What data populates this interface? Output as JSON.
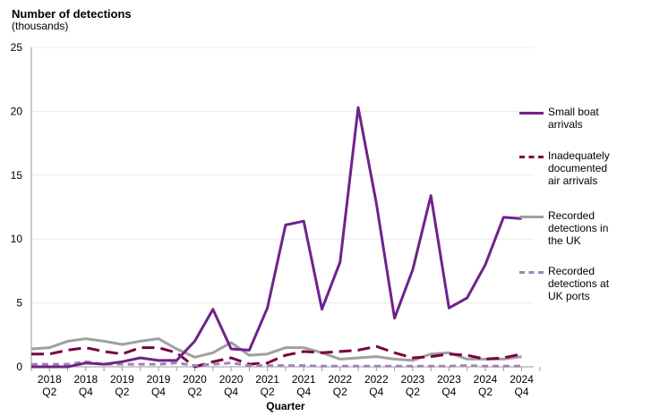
{
  "chart_data": {
    "type": "line",
    "title": "Number of detections",
    "subtitle": "(thousands)",
    "xlabel": "Quarter",
    "ylabel": "",
    "ylim": [
      0,
      25
    ],
    "yticks": [
      0,
      5,
      10,
      15,
      20,
      25
    ],
    "grid": true,
    "legend_position": "right",
    "x": [
      "2018 Q1",
      "2018 Q2",
      "2018 Q3",
      "2018 Q4",
      "2019 Q1",
      "2019 Q2",
      "2019 Q3",
      "2019 Q4",
      "2020 Q1",
      "2020 Q2",
      "2020 Q3",
      "2020 Q4",
      "2021 Q1",
      "2021 Q2",
      "2021 Q3",
      "2021 Q4",
      "2022 Q1",
      "2022 Q2",
      "2022 Q3",
      "2022 Q4",
      "2023 Q1",
      "2023 Q2",
      "2023 Q3",
      "2023 Q4",
      "2024 Q1",
      "2024 Q2",
      "2024 Q3",
      "2024 Q4"
    ],
    "xtick_labels": [
      [
        "2018",
        "Q2"
      ],
      [
        "2018",
        "Q4"
      ],
      [
        "2019",
        "Q2"
      ],
      [
        "2019",
        "Q4"
      ],
      [
        "2020",
        "Q2"
      ],
      [
        "2020",
        "Q4"
      ],
      [
        "2021",
        "Q2"
      ],
      [
        "2021",
        "Q4"
      ],
      [
        "2022",
        "Q2"
      ],
      [
        "2022",
        "Q4"
      ],
      [
        "2023",
        "Q2"
      ],
      [
        "2023",
        "Q4"
      ],
      [
        "2024",
        "Q2"
      ],
      [
        "2024",
        "Q4"
      ]
    ],
    "series": [
      {
        "name": "Small boat arrivals",
        "legend_lines": [
          "Small boat",
          "arrivals"
        ],
        "color": "#70228a",
        "dash": "solid",
        "values": [
          0.0,
          0.0,
          0.0,
          0.3,
          0.2,
          0.4,
          0.7,
          0.5,
          0.5,
          2.0,
          4.5,
          1.4,
          1.3,
          4.6,
          11.1,
          11.4,
          4.5,
          8.2,
          20.3,
          12.8,
          3.8,
          7.6,
          13.4,
          4.6,
          5.4,
          8.0,
          11.7,
          11.6
        ]
      },
      {
        "name": "Inadequately documented air arrivals",
        "legend_lines": [
          "Inadequately",
          "documented",
          "air arrivals"
        ],
        "color": "#7b0041",
        "dash": "long",
        "values": [
          1.0,
          1.0,
          1.3,
          1.5,
          1.2,
          1.0,
          1.5,
          1.5,
          1.1,
          0.0,
          0.4,
          0.7,
          0.2,
          0.3,
          0.9,
          1.2,
          1.1,
          1.2,
          1.3,
          1.6,
          1.1,
          0.7,
          0.8,
          1.0,
          0.9,
          0.6,
          0.7,
          1.0
        ]
      },
      {
        "name": "Recorded detections in the UK",
        "legend_lines": [
          "Recorded",
          "detections in",
          "the UK"
        ],
        "color": "#a0a0a0",
        "dash": "solid",
        "values": [
          1.4,
          1.5,
          2.0,
          2.2,
          2.0,
          1.75,
          2.0,
          2.2,
          1.4,
          0.75,
          1.1,
          1.9,
          0.9,
          1.0,
          1.5,
          1.5,
          1.1,
          0.6,
          0.7,
          0.8,
          0.6,
          0.5,
          1.0,
          1.1,
          0.6,
          0.6,
          0.6,
          0.8
        ]
      },
      {
        "name": "Recorded detections at UK ports",
        "legend_lines": [
          "Recorded",
          "detections at",
          "UK ports"
        ],
        "color": "#a184b7",
        "dash": "short",
        "values": [
          0.2,
          0.2,
          0.2,
          0.4,
          0.2,
          0.2,
          0.2,
          0.2,
          0.3,
          0.1,
          0.2,
          0.3,
          0.1,
          0.1,
          0.1,
          0.1,
          0.05,
          0.05,
          0.05,
          0.05,
          0.05,
          0.05,
          0.05,
          0.05,
          0.1,
          0.05,
          0.05,
          0.05
        ]
      }
    ]
  }
}
